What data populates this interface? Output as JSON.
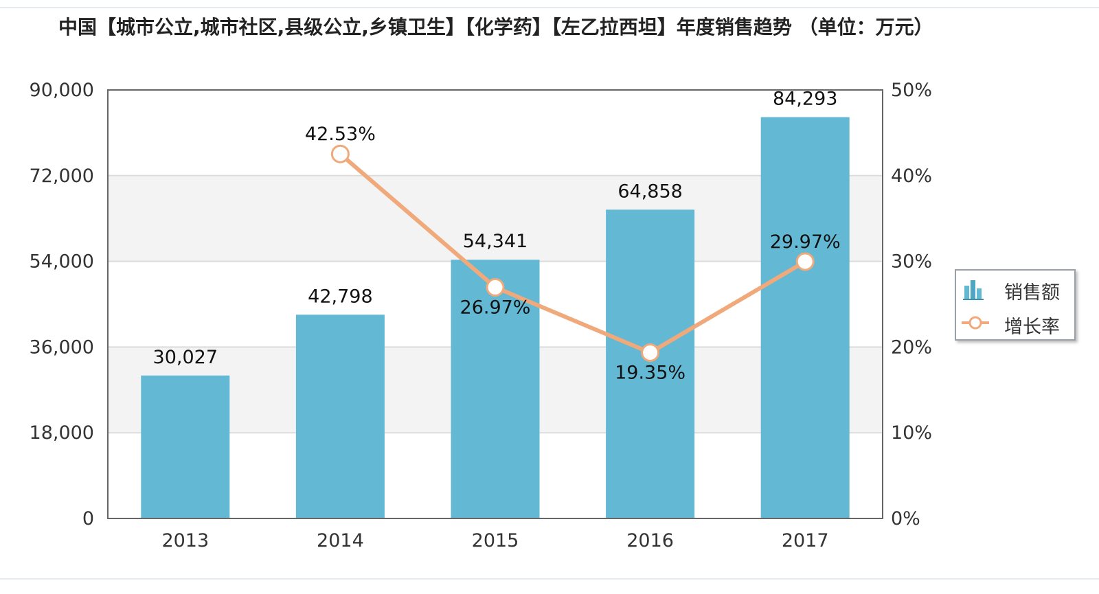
{
  "title": "中国【城市公立,城市社区,县级公立,乡镇卫生】【化学药】【左乙拉西坦】年度销售趋势 （单位：万元）",
  "colors": {
    "bar": "#63b8d4",
    "line": "#f0a97a",
    "grid": "#dcdcdc",
    "band": "#f3f3f3",
    "axis": "#666666"
  },
  "legend": [
    {
      "label": "销售额",
      "icon": "bar-chart-icon"
    },
    {
      "label": "增长率",
      "icon": "line-marker-icon"
    }
  ],
  "chart_data": {
    "type": "bar",
    "categories": [
      "2013",
      "2014",
      "2015",
      "2016",
      "2017"
    ],
    "series": [
      {
        "name": "销售额",
        "type": "bar",
        "axis": "left",
        "values": [
          30027,
          42798,
          54341,
          64858,
          84293
        ],
        "labels": [
          "30,027",
          "42,798",
          "54,341",
          "64,858",
          "84,293"
        ]
      },
      {
        "name": "增长率",
        "type": "line",
        "axis": "right",
        "values": [
          null,
          42.53,
          26.97,
          19.35,
          29.97
        ],
        "labels": [
          "",
          "42.53%",
          "26.97%",
          "19.35%",
          "29.97%"
        ]
      }
    ],
    "y_left": {
      "min": 0,
      "max": 90000,
      "ticks": [
        "0",
        "18,000",
        "36,000",
        "54,000",
        "72,000",
        "90,000"
      ]
    },
    "y_right": {
      "min": 0,
      "max": 50,
      "ticks": [
        "0%",
        "10%",
        "20%",
        "30%",
        "40%",
        "50%"
      ]
    },
    "grid": true,
    "legend_position": "right"
  }
}
